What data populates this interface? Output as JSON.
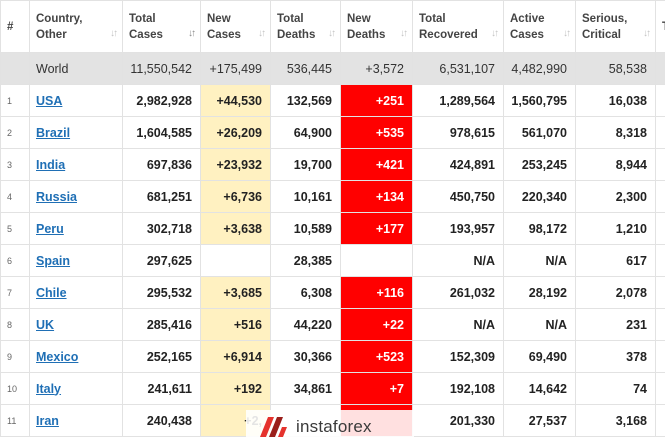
{
  "headers": [
    {
      "line1": "#",
      "line2": ""
    },
    {
      "line1": "Country,",
      "line2": "Other"
    },
    {
      "line1": "Total",
      "line2": "Cases"
    },
    {
      "line1": "New",
      "line2": "Cases"
    },
    {
      "line1": "Total",
      "line2": "Deaths"
    },
    {
      "line1": "New",
      "line2": "Deaths"
    },
    {
      "line1": "Total",
      "line2": "Recovered"
    },
    {
      "line1": "Active",
      "line2": "Cases"
    },
    {
      "line1": "Serious,",
      "line2": "Critical"
    },
    {
      "line1": "T",
      "line2": ""
    }
  ],
  "sort_icon": "sort-arrows-icon",
  "world": {
    "country": "World",
    "total_cases": "11,550,542",
    "new_cases": "+175,499",
    "total_deaths": "536,445",
    "new_deaths": "+3,572",
    "total_recovered": "6,531,107",
    "active_cases": "4,482,990",
    "serious_critical": "58,538"
  },
  "rows": [
    {
      "num": "1",
      "country": "USA",
      "total_cases": "2,982,928",
      "new_cases": "+44,530",
      "total_deaths": "132,569",
      "new_deaths": "+251",
      "total_recovered": "1,289,564",
      "active_cases": "1,560,795",
      "serious_critical": "16,038"
    },
    {
      "num": "2",
      "country": "Brazil",
      "total_cases": "1,604,585",
      "new_cases": "+26,209",
      "total_deaths": "64,900",
      "new_deaths": "+535",
      "total_recovered": "978,615",
      "active_cases": "561,070",
      "serious_critical": "8,318"
    },
    {
      "num": "3",
      "country": "India",
      "total_cases": "697,836",
      "new_cases": "+23,932",
      "total_deaths": "19,700",
      "new_deaths": "+421",
      "total_recovered": "424,891",
      "active_cases": "253,245",
      "serious_critical": "8,944"
    },
    {
      "num": "4",
      "country": "Russia",
      "total_cases": "681,251",
      "new_cases": "+6,736",
      "total_deaths": "10,161",
      "new_deaths": "+134",
      "total_recovered": "450,750",
      "active_cases": "220,340",
      "serious_critical": "2,300"
    },
    {
      "num": "5",
      "country": "Peru",
      "total_cases": "302,718",
      "new_cases": "+3,638",
      "total_deaths": "10,589",
      "new_deaths": "+177",
      "total_recovered": "193,957",
      "active_cases": "98,172",
      "serious_critical": "1,210"
    },
    {
      "num": "6",
      "country": "Spain",
      "total_cases": "297,625",
      "new_cases": "",
      "total_deaths": "28,385",
      "new_deaths": "",
      "total_recovered": "N/A",
      "active_cases": "N/A",
      "serious_critical": "617"
    },
    {
      "num": "7",
      "country": "Chile",
      "total_cases": "295,532",
      "new_cases": "+3,685",
      "total_deaths": "6,308",
      "new_deaths": "+116",
      "total_recovered": "261,032",
      "active_cases": "28,192",
      "serious_critical": "2,078"
    },
    {
      "num": "8",
      "country": "UK",
      "total_cases": "285,416",
      "new_cases": "+516",
      "total_deaths": "44,220",
      "new_deaths": "+22",
      "total_recovered": "N/A",
      "active_cases": "N/A",
      "serious_critical": "231"
    },
    {
      "num": "9",
      "country": "Mexico",
      "total_cases": "252,165",
      "new_cases": "+6,914",
      "total_deaths": "30,366",
      "new_deaths": "+523",
      "total_recovered": "152,309",
      "active_cases": "69,490",
      "serious_critical": "378"
    },
    {
      "num": "10",
      "country": "Italy",
      "total_cases": "241,611",
      "new_cases": "+192",
      "total_deaths": "34,861",
      "new_deaths": "+7",
      "total_recovered": "192,108",
      "active_cases": "14,642",
      "serious_critical": "74"
    },
    {
      "num": "11",
      "country": "Iran",
      "total_cases": "240,438",
      "new_cases": "+2,",
      "total_deaths": "",
      "new_deaths": "",
      "total_recovered": "201,330",
      "active_cases": "27,537",
      "serious_critical": "3,168"
    }
  ],
  "highlight_colors": {
    "new_cases": "#fff1c1",
    "new_deaths": "#ff0000",
    "world_row": "#e3e3e3",
    "link": "#1f6fb5"
  },
  "watermark": {
    "text": "instaforex",
    "icon": "instaforex-logo-icon"
  }
}
